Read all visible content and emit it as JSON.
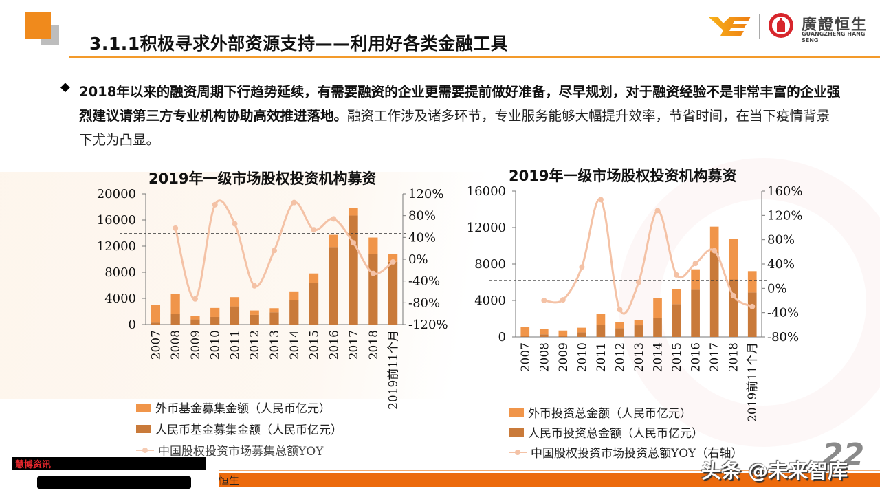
{
  "header": {
    "title": "3.1.1积极寻求外部资源支持——利用好各类金融工具",
    "logo_cn": "廣證恒生",
    "logo_en": "GUANGZHENG HANG SENG"
  },
  "body": {
    "bullet_icon": "diamond-bullet",
    "paragraph_bold": "2018年以来的融资周期下行趋势延续，有需要融资的企业更需要提前做好准备，尽早规划，对于融资经验不是非常丰富的企业强烈建议请第三方专业机构协助高效推进落地。",
    "paragraph_rest": "融资工作涉及诸多环节，专业服务能够大幅提升效率，节省时间，在当下疫情背景下尤为凸显。"
  },
  "colors": {
    "accent": "#f08a1c",
    "foreign": "#f0954a",
    "rmb": "#c97a3a",
    "yoy": "#f4c2a6",
    "footer": "#ec6a0c"
  },
  "chart_data": [
    {
      "type": "bar",
      "stacked": true,
      "title": "2019年一级市场股权投资机构募资",
      "categories": [
        "2007",
        "2008",
        "2009",
        "2010",
        "2011",
        "2012",
        "2013",
        "2014",
        "2015",
        "2016",
        "2017",
        "2018",
        "2019前11个月"
      ],
      "series": [
        {
          "name": "人民币基金募集金额（人民币亿元）",
          "axis": "left",
          "values": [
            300,
            1590,
            780,
            1160,
            2780,
            1480,
            1870,
            3700,
            6340,
            11870,
            16690,
            10810,
            9610
          ]
        },
        {
          "name": "外币基金募集金额（人民币亿元）",
          "axis": "left",
          "values": [
            2700,
            3090,
            490,
            1380,
            1410,
            670,
            630,
            1370,
            1480,
            1860,
            1200,
            2500,
            1200
          ]
        },
        {
          "name": "中国股权投资市场募集总额YOY",
          "type": "line",
          "axis": "right",
          "values": [
            null,
            57,
            -73,
            100,
            65,
            -49,
            16,
            104,
            54,
            74,
            30,
            -26,
            -5
          ]
        }
      ],
      "left_axis": {
        "ylim": [
          0,
          20000
        ],
        "ticks": [
          "0",
          "4000",
          "8000",
          "12000",
          "16000",
          "20000"
        ]
      },
      "right_axis": {
        "ylim": [
          -120,
          120
        ],
        "ticks": [
          "-120%",
          "-80%",
          "-40%",
          "0%",
          "40%",
          "80%",
          "120%"
        ]
      },
      "reference_line_right": 47,
      "legend_order": [
        1,
        0,
        2
      ],
      "legend_position": "bottom"
    },
    {
      "type": "bar",
      "stacked": true,
      "title": "2019年一级市场股权投资机构募资",
      "categories": [
        "2007",
        "2008",
        "2009",
        "2010",
        "2011",
        "2012",
        "2013",
        "2014",
        "2015",
        "2016",
        "2017",
        "2018",
        "2019前11个月"
      ],
      "series": [
        {
          "name": "人民币投资总金额（人民币亿元）",
          "axis": "left",
          "values": [
            100,
            280,
            150,
            500,
            1330,
            960,
            1280,
            2090,
            3600,
            5180,
            9330,
            6300,
            4880
          ]
        },
        {
          "name": "外币投资总金额（人民币亿元）",
          "axis": "left",
          "values": [
            1010,
            600,
            550,
            510,
            1190,
            680,
            560,
            2160,
            1610,
            2240,
            2770,
            4470,
            2340
          ]
        },
        {
          "name": "中国股权投资市场投资总额YOY（右轴）",
          "type": "line",
          "axis": "right",
          "values": [
            null,
            -20,
            -19,
            35,
            146,
            -35,
            10,
            128,
            22,
            41,
            62,
            -12,
            -30
          ]
        }
      ],
      "left_axis": {
        "ylim": [
          0,
          16000
        ],
        "ticks": [
          "0",
          "4000",
          "8000",
          "12000",
          "16000"
        ]
      },
      "right_axis": {
        "ylim": [
          -80,
          160
        ],
        "ticks": [
          "-80%",
          "-40%",
          "0%",
          "40%",
          "80%",
          "120%",
          "160%"
        ]
      },
      "reference_line_right": 13,
      "legend_order": [
        1,
        0,
        2
      ],
      "legend_position": "bottom"
    }
  ],
  "footer": {
    "redacted_source": "慧博资讯",
    "footer_text": "恒生",
    "page_number": "22",
    "watermark": "头条 @未来智库"
  }
}
